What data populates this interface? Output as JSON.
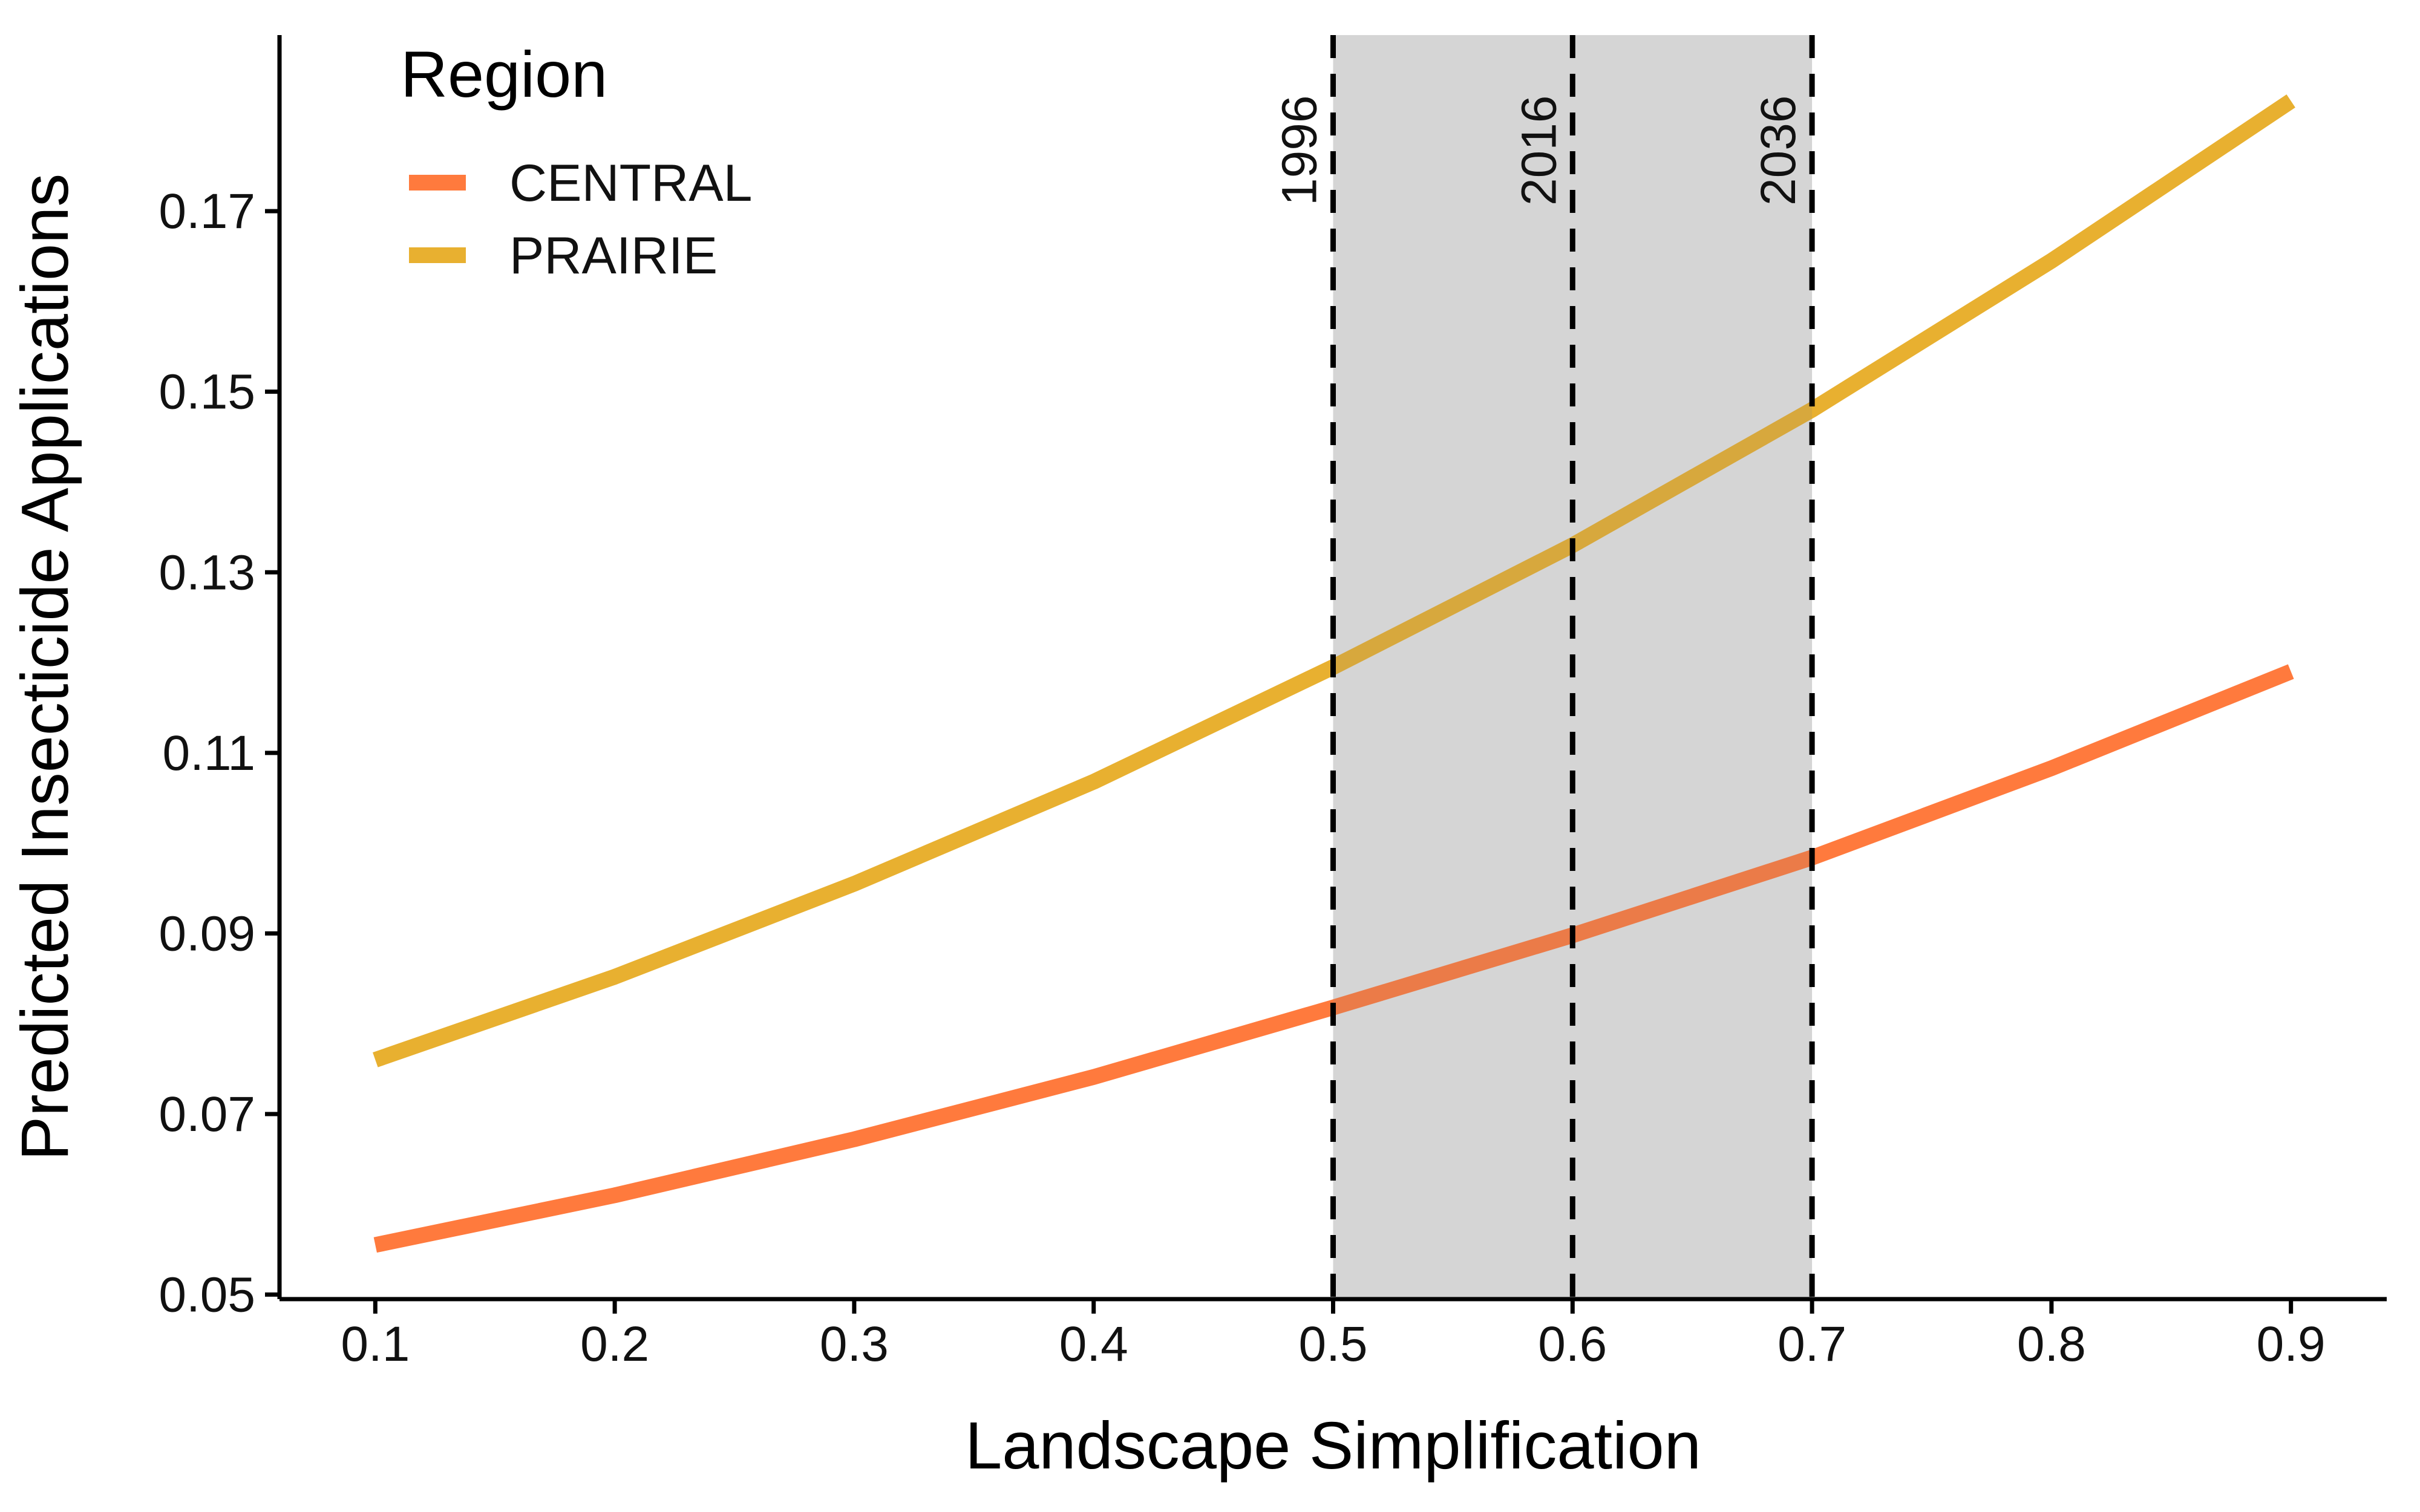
{
  "chart_data": {
    "type": "line",
    "xlabel": "Landscape Simplification",
    "ylabel": "Predicted Insecticide Applications",
    "xlim": [
      0.06,
      0.94
    ],
    "ylim": [
      0.0495,
      0.1895
    ],
    "xticks": [
      0.1,
      0.2,
      0.3,
      0.4,
      0.5,
      0.6,
      0.7,
      0.8,
      0.9
    ],
    "yticks": [
      0.05,
      0.07,
      0.09,
      0.11,
      0.13,
      0.15,
      0.17
    ],
    "xtick_labels": [
      "0.1",
      "0.2",
      "0.3",
      "0.4",
      "0.5",
      "0.6",
      "0.7",
      "0.8",
      "0.9"
    ],
    "ytick_labels": [
      "0.05",
      "0.07",
      "0.09",
      "0.11",
      "0.13",
      "0.15",
      "0.17"
    ],
    "x": [
      0.1,
      0.2,
      0.3,
      0.4,
      0.5,
      0.6,
      0.7,
      0.8,
      0.9
    ],
    "series": [
      {
        "name": "CENTRAL",
        "color": "#FF7A3D",
        "values": [
          0.0555,
          0.061,
          0.0672,
          0.0741,
          0.0818,
          0.0898,
          0.0984,
          0.1083,
          0.119
        ]
      },
      {
        "name": "PRAIRIE",
        "color": "#E8B030",
        "values": [
          0.076,
          0.0852,
          0.0955,
          0.1068,
          0.1195,
          0.133,
          0.148,
          0.1645,
          0.1822
        ]
      }
    ],
    "legend": {
      "title": "Region",
      "placement": "top-left"
    },
    "highlight_band": {
      "x_start": 0.5,
      "x_end": 0.7,
      "color": "#E5E5E5"
    },
    "reference_lines": [
      {
        "x": 0.5,
        "label": "1996"
      },
      {
        "x": 0.6,
        "label": "2016"
      },
      {
        "x": 0.7,
        "label": "2036"
      }
    ],
    "grid": false
  }
}
